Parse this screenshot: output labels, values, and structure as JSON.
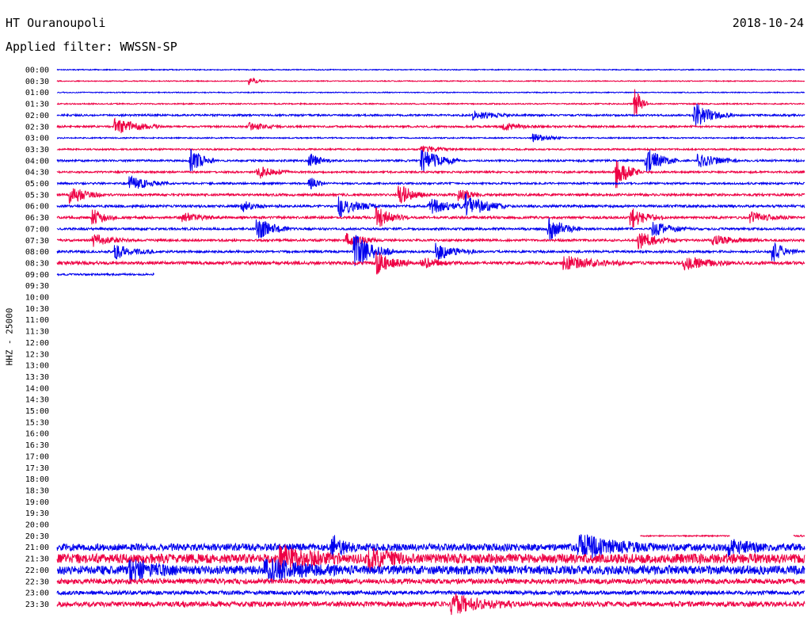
{
  "header": {
    "station": "HT Ouranoupoli",
    "date": "2018-10-24",
    "filter": "Applied filter: WWSSN-SP",
    "side_label": "HHZ - 25000"
  },
  "chart_data": {
    "type": "line",
    "title": "HT Ouranoupoli",
    "ylabel": "HHZ - 25000",
    "time_labels": [
      "00:00",
      "00:30",
      "01:00",
      "01:30",
      "02:00",
      "02:30",
      "03:00",
      "03:30",
      "04:00",
      "04:30",
      "05:00",
      "05:30",
      "06:00",
      "06:30",
      "07:00",
      "07:30",
      "08:00",
      "08:30",
      "09:00",
      "09:30",
      "10:00",
      "10:30",
      "11:00",
      "11:30",
      "12:00",
      "12:30",
      "13:00",
      "13:30",
      "14:00",
      "14:30",
      "15:00",
      "15:30",
      "16:00",
      "16:30",
      "17:00",
      "17:30",
      "18:00",
      "18:30",
      "19:00",
      "19:30",
      "20:00",
      "20:30",
      "21:00",
      "21:30",
      "22:00",
      "22:30",
      "23:00",
      "23:30"
    ],
    "row_minutes": 30,
    "series_colors": [
      "#0000ee",
      "#ee0044"
    ],
    "traces": [
      {
        "row": "00:00",
        "coverage": [
          0,
          1
        ],
        "noise": 0.6,
        "events": []
      },
      {
        "row": "00:30",
        "coverage": [
          0,
          1
        ],
        "noise": 0.6,
        "events": [
          {
            "t": 0.26,
            "amp": 4,
            "dur": 0.02
          }
        ]
      },
      {
        "row": "01:00",
        "coverage": [
          0,
          1
        ],
        "noise": 0.6,
        "events": []
      },
      {
        "row": "01:30",
        "coverage": [
          0,
          1
        ],
        "noise": 0.8,
        "events": [
          {
            "t": 0.775,
            "amp": 18,
            "dur": 0.015
          }
        ]
      },
      {
        "row": "02:00",
        "coverage": [
          0,
          1
        ],
        "noise": 1.2,
        "events": [
          {
            "t": 0.56,
            "amp": 6,
            "dur": 0.05
          },
          {
            "t": 0.855,
            "amp": 14,
            "dur": 0.05
          }
        ]
      },
      {
        "row": "02:30",
        "coverage": [
          0,
          1
        ],
        "noise": 1.2,
        "events": [
          {
            "t": 0.08,
            "amp": 10,
            "dur": 0.06
          },
          {
            "t": 0.26,
            "amp": 5,
            "dur": 0.04
          },
          {
            "t": 0.6,
            "amp": 4,
            "dur": 0.05
          }
        ]
      },
      {
        "row": "03:00",
        "coverage": [
          0,
          1
        ],
        "noise": 0.8,
        "events": [
          {
            "t": 0.64,
            "amp": 5,
            "dur": 0.04
          }
        ]
      },
      {
        "row": "03:30",
        "coverage": [
          0,
          1
        ],
        "noise": 1.0,
        "events": [
          {
            "t": 0.49,
            "amp": 4,
            "dur": 0.05
          }
        ]
      },
      {
        "row": "04:00",
        "coverage": [
          0,
          1
        ],
        "noise": 1.2,
        "events": [
          {
            "t": 0.18,
            "amp": 16,
            "dur": 0.03
          },
          {
            "t": 0.34,
            "amp": 8,
            "dur": 0.03
          },
          {
            "t": 0.49,
            "amp": 14,
            "dur": 0.05
          },
          {
            "t": 0.79,
            "amp": 16,
            "dur": 0.04
          },
          {
            "t": 0.86,
            "amp": 10,
            "dur": 0.05
          }
        ]
      },
      {
        "row": "04:30",
        "coverage": [
          0,
          1
        ],
        "noise": 1.2,
        "events": [
          {
            "t": 0.27,
            "amp": 8,
            "dur": 0.04
          },
          {
            "t": 0.75,
            "amp": 20,
            "dur": 0.03
          }
        ]
      },
      {
        "row": "05:00",
        "coverage": [
          0,
          1
        ],
        "noise": 1.2,
        "events": [
          {
            "t": 0.1,
            "amp": 8,
            "dur": 0.05
          },
          {
            "t": 0.34,
            "amp": 7,
            "dur": 0.02
          }
        ]
      },
      {
        "row": "05:30",
        "coverage": [
          0,
          1
        ],
        "noise": 1.5,
        "events": [
          {
            "t": 0.02,
            "amp": 10,
            "dur": 0.04
          },
          {
            "t": 0.46,
            "amp": 12,
            "dur": 0.04
          },
          {
            "t": 0.54,
            "amp": 8,
            "dur": 0.03
          }
        ]
      },
      {
        "row": "06:00",
        "coverage": [
          0,
          1
        ],
        "noise": 1.5,
        "events": [
          {
            "t": 0.25,
            "amp": 6,
            "dur": 0.03
          },
          {
            "t": 0.38,
            "amp": 12,
            "dur": 0.05
          },
          {
            "t": 0.5,
            "amp": 10,
            "dur": 0.05
          },
          {
            "t": 0.55,
            "amp": 14,
            "dur": 0.05
          }
        ]
      },
      {
        "row": "06:30",
        "coverage": [
          0,
          1
        ],
        "noise": 1.5,
        "events": [
          {
            "t": 0.05,
            "amp": 10,
            "dur": 0.03
          },
          {
            "t": 0.17,
            "amp": 6,
            "dur": 0.04
          },
          {
            "t": 0.43,
            "amp": 12,
            "dur": 0.04
          },
          {
            "t": 0.77,
            "amp": 12,
            "dur": 0.04
          },
          {
            "t": 0.93,
            "amp": 6,
            "dur": 0.05
          }
        ]
      },
      {
        "row": "07:00",
        "coverage": [
          0,
          1
        ],
        "noise": 1.4,
        "events": [
          {
            "t": 0.27,
            "amp": 14,
            "dur": 0.04
          },
          {
            "t": 0.66,
            "amp": 14,
            "dur": 0.04
          },
          {
            "t": 0.8,
            "amp": 8,
            "dur": 0.05
          }
        ]
      },
      {
        "row": "07:30",
        "coverage": [
          0,
          1
        ],
        "noise": 1.4,
        "events": [
          {
            "t": 0.05,
            "amp": 7,
            "dur": 0.05
          },
          {
            "t": 0.39,
            "amp": 8,
            "dur": 0.04
          },
          {
            "t": 0.78,
            "amp": 10,
            "dur": 0.05
          },
          {
            "t": 0.88,
            "amp": 6,
            "dur": 0.06
          }
        ]
      },
      {
        "row": "08:00",
        "coverage": [
          0,
          1
        ],
        "noise": 1.4,
        "events": [
          {
            "t": 0.08,
            "amp": 8,
            "dur": 0.05
          },
          {
            "t": 0.4,
            "amp": 20,
            "dur": 0.05
          },
          {
            "t": 0.51,
            "amp": 10,
            "dur": 0.05
          },
          {
            "t": 0.96,
            "amp": 12,
            "dur": 0.03
          }
        ]
      },
      {
        "row": "08:30",
        "coverage": [
          0,
          1
        ],
        "noise": 2.0,
        "events": [
          {
            "t": 0.43,
            "amp": 14,
            "dur": 0.04
          },
          {
            "t": 0.49,
            "amp": 6,
            "dur": 0.05
          },
          {
            "t": 0.68,
            "amp": 8,
            "dur": 0.08
          },
          {
            "t": 0.84,
            "amp": 8,
            "dur": 0.06
          }
        ]
      },
      {
        "row": "09:00",
        "coverage": [
          0,
          0.13
        ],
        "noise": 1.2,
        "events": []
      },
      {
        "row": "20:30",
        "coverage": [
          0.78,
          0.9
        ],
        "noise": 0.8,
        "events": []
      },
      {
        "row": "20:30b",
        "coverage": [
          0.985,
          1
        ],
        "noise": 1.0,
        "events": []
      },
      {
        "row": "21:00",
        "coverage": [
          0,
          1
        ],
        "noise": 4.5,
        "events": [
          {
            "t": 0.37,
            "amp": 12,
            "dur": 0.03
          },
          {
            "t": 0.7,
            "amp": 14,
            "dur": 0.1
          },
          {
            "t": 0.9,
            "amp": 10,
            "dur": 0.05
          }
        ]
      },
      {
        "row": "21:30",
        "coverage": [
          0,
          1
        ],
        "noise": 6.0,
        "events": [
          {
            "t": 0.3,
            "amp": 14,
            "dur": 0.08
          },
          {
            "t": 0.42,
            "amp": 12,
            "dur": 0.05
          }
        ]
      },
      {
        "row": "22:00",
        "coverage": [
          0,
          1
        ],
        "noise": 5.5,
        "events": [
          {
            "t": 0.1,
            "amp": 12,
            "dur": 0.06
          },
          {
            "t": 0.28,
            "amp": 12,
            "dur": 0.1
          }
        ]
      },
      {
        "row": "22:30",
        "coverage": [
          0,
          1
        ],
        "noise": 3.2,
        "events": []
      },
      {
        "row": "23:00",
        "coverage": [
          0,
          1
        ],
        "noise": 2.5,
        "events": []
      },
      {
        "row": "23:30",
        "coverage": [
          0,
          1
        ],
        "noise": 3.2,
        "events": [
          {
            "t": 0.53,
            "amp": 12,
            "dur": 0.08
          }
        ]
      }
    ]
  }
}
